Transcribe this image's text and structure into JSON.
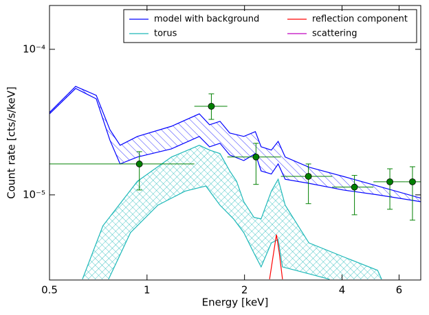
{
  "chart_data": {
    "type": "line",
    "xlabel": "Energy [keV]",
    "ylabel": "Count rate [cts/s/keV]",
    "xscale": "log",
    "yscale": "log",
    "xlim": [
      0.5,
      7
    ],
    "ylim": [
      2.6e-06,
      0.0002
    ],
    "xticks": [
      0.5,
      1,
      2,
      4,
      6
    ],
    "yticks": [
      {
        "value": 1e-05,
        "label": "10⁻⁵"
      },
      {
        "value": 0.0001,
        "label": "10⁻⁴"
      }
    ],
    "legend": "upper right",
    "series": [
      {
        "name": "model with background",
        "color": "#0000ff",
        "x": [
          0.5,
          0.602,
          0.697,
          0.768,
          0.826,
          0.934,
          1.19,
          1.45,
          1.56,
          1.68,
          1.8,
          1.99,
          2.16,
          2.25,
          2.42,
          2.54,
          2.67,
          3.16,
          4.03,
          5.15,
          7.0
        ],
        "upper": [
          3.68e-05,
          5.56e-05,
          4.83e-05,
          2.81e-05,
          2.19e-05,
          2.52e-05,
          2.96e-05,
          3.6e-05,
          3.03e-05,
          3.2e-05,
          2.66e-05,
          2.52e-05,
          2.72e-05,
          2.14e-05,
          2.03e-05,
          2.33e-05,
          1.82e-05,
          1.55e-05,
          1.34e-05,
          1.15e-05,
          9.5e-06
        ],
        "lower": [
          3.6e-05,
          5.38e-05,
          4.57e-05,
          2.38e-05,
          1.63e-05,
          1.82e-05,
          2.07e-05,
          2.52e-05,
          2.14e-05,
          2.26e-05,
          1.88e-05,
          1.72e-05,
          1.92e-05,
          1.46e-05,
          1.39e-05,
          1.63e-05,
          1.28e-05,
          1.2e-05,
          1.08e-05,
          1e-05,
          8.97e-06
        ]
      },
      {
        "name": "torus",
        "color": "#1cb8b8",
        "x_upper": [
          0.632,
          0.731,
          0.934,
          1.19,
          1.45,
          1.56,
          1.68,
          1.8,
          1.89,
          1.99,
          2.14,
          2.25,
          2.42,
          2.54,
          2.67,
          3.16,
          4.03,
          5.15,
          5.3
        ],
        "upper": [
          2.63e-06,
          6.13e-06,
          1.24e-05,
          1.82e-05,
          2.19e-05,
          2.03e-05,
          1.92e-05,
          1.46e-05,
          1.24e-05,
          8.97e-06,
          6.99e-06,
          6.84e-06,
          1.06e-05,
          1.28e-05,
          8.49e-06,
          4.68e-06,
          3.76e-06,
          3.03e-06,
          2.63e-06
        ],
        "x_lower": [
          0.761,
          0.889,
          1.08,
          1.31,
          1.52,
          1.68,
          1.85,
          1.99,
          2.14,
          2.25,
          2.42,
          2.54,
          2.62,
          3.16,
          3.66
        ],
        "lower": [
          2.63e-06,
          5.5e-06,
          8.49e-06,
          1.06e-05,
          1.15e-05,
          8.49e-06,
          6.84e-06,
          5.5e-06,
          3.97e-06,
          3.2e-06,
          4.68e-06,
          4.93e-06,
          3.2e-06,
          2.87e-06,
          2.63e-06
        ]
      },
      {
        "name": "reflection component",
        "color": "#ff0000",
        "x": [
          2.39,
          2.46,
          2.51,
          2.56,
          2.62
        ],
        "values": [
          2.63e-06,
          4e-06,
          5.33e-06,
          4e-06,
          2.63e-06
        ]
      },
      {
        "name": "scattering",
        "color": "#bf00bf"
      }
    ],
    "points": {
      "color": "#008000",
      "x": [
        0.947,
        1.58,
        2.17,
        3.15,
        4.37,
        5.62,
        6.6
      ],
      "values": [
        1.63e-05,
        4.06e-05,
        1.82e-05,
        1.34e-05,
        1.13e-05,
        1.23e-05,
        1.23e-05
      ],
      "x_low": [
        0.5,
        1.4,
        1.77,
        2.59,
        3.73,
        5.0,
        6.26
      ],
      "x_high": [
        1.4,
        1.77,
        2.59,
        3.73,
        5.0,
        6.26,
        7.0
      ],
      "y_low": [
        1.08e-05,
        3.3e-05,
        1.18e-05,
        8.7e-06,
        7.3e-06,
        7.96e-06,
        6.7e-06
      ],
      "y_high": [
        1.98e-05,
        4.94e-05,
        2.26e-05,
        1.63e-05,
        1.36e-05,
        1.51e-05,
        1.56e-05
      ]
    }
  }
}
